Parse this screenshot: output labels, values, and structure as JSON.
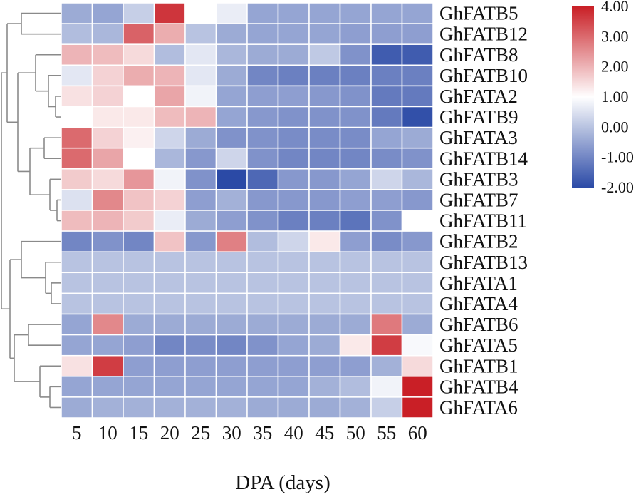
{
  "chart_data": {
    "type": "heatmap",
    "xlabel": "DPA (days)",
    "ylabel": "",
    "columns": [
      "5",
      "10",
      "15",
      "20",
      "25",
      "30",
      "35",
      "40",
      "45",
      "50",
      "55",
      "60"
    ],
    "rows": [
      "GhFATB5",
      "GhFATB12",
      "GhFATB8",
      "GhFATB10",
      "GhFATA2",
      "GhFATB9",
      "GhFATA3",
      "GhFATB14",
      "GhFATB3",
      "GhFATB7",
      "GhFATB11",
      "GhFATB2",
      "GhFATB13",
      "GhFATA1",
      "GhFATA4",
      "GhFATB6",
      "GhFATA5",
      "GhFATB1",
      "GhFATB4",
      "GhFATA6"
    ],
    "values": [
      [
        -0.4,
        -0.5,
        0.2,
        3.7,
        1.0,
        0.7,
        -0.5,
        -0.5,
        -0.5,
        -0.5,
        -0.5,
        -0.5
      ],
      [
        -0.1,
        -0.2,
        3.1,
        2.1,
        0.0,
        -0.4,
        -0.5,
        -0.5,
        -0.5,
        -0.6,
        -0.6,
        -0.6
      ],
      [
        2.0,
        1.9,
        1.5,
        -0.1,
        0.6,
        -0.2,
        -0.4,
        -0.4,
        0.1,
        -0.8,
        -1.7,
        -1.7
      ],
      [
        0.6,
        1.6,
        2.1,
        2.0,
        0.6,
        -0.4,
        -1.0,
        -1.1,
        -1.1,
        -1.1,
        -1.1,
        -1.1
      ],
      [
        1.4,
        1.6,
        1.0,
        2.2,
        0.8,
        -0.5,
        -0.6,
        -0.6,
        -0.7,
        -0.8,
        -1.2,
        -1.2
      ],
      [
        1.0,
        1.3,
        1.3,
        1.9,
        2.0,
        -0.5,
        -0.7,
        -0.8,
        -0.8,
        -0.8,
        -1.2,
        -1.9
      ],
      [
        3.0,
        1.6,
        1.2,
        0.3,
        -0.4,
        -0.8,
        -0.8,
        -0.9,
        -0.9,
        -0.9,
        -0.5,
        -0.4
      ],
      [
        3.0,
        2.2,
        1.0,
        -0.2,
        -0.7,
        0.3,
        -0.8,
        -1.0,
        -1.0,
        -1.0,
        -0.9,
        -0.8
      ],
      [
        1.7,
        1.5,
        2.4,
        0.8,
        -0.8,
        -2.0,
        -1.5,
        -0.7,
        -0.7,
        -0.5,
        0.3,
        -0.2
      ],
      [
        0.5,
        2.6,
        1.8,
        1.6,
        -0.6,
        -0.3,
        -0.7,
        -0.7,
        -0.7,
        -0.6,
        -0.6,
        -0.7
      ],
      [
        1.9,
        2.0,
        1.7,
        0.7,
        -0.4,
        -0.6,
        -0.8,
        -1.1,
        -1.1,
        -1.3,
        -0.8,
        1.0
      ],
      [
        -1.0,
        -0.8,
        -1.0,
        1.8,
        -0.7,
        2.7,
        -0.1,
        0.3,
        1.3,
        -0.6,
        -0.9,
        -0.7
      ],
      [
        0.0,
        0.0,
        0.0,
        0.0,
        0.0,
        0.0,
        0.0,
        0.0,
        0.0,
        0.0,
        0.0,
        0.0
      ],
      [
        0.0,
        0.0,
        0.0,
        0.0,
        0.0,
        0.0,
        0.0,
        0.0,
        0.0,
        0.0,
        0.0,
        0.0
      ],
      [
        0.0,
        0.0,
        0.0,
        0.0,
        0.0,
        0.0,
        0.0,
        0.0,
        0.0,
        0.0,
        0.0,
        0.0
      ],
      [
        -0.5,
        2.6,
        -0.4,
        -0.4,
        -0.4,
        -0.4,
        -0.4,
        -0.4,
        -0.4,
        -0.4,
        2.8,
        -0.4
      ],
      [
        -0.5,
        -0.5,
        -0.6,
        -1.0,
        -0.9,
        -1.0,
        -0.8,
        -0.5,
        -0.4,
        1.3,
        3.6,
        0.9
      ],
      [
        1.4,
        3.6,
        -0.6,
        -0.6,
        -0.6,
        -0.6,
        -0.6,
        -0.6,
        -0.6,
        -0.6,
        -0.3,
        1.5
      ],
      [
        -0.5,
        -0.5,
        -0.5,
        -0.5,
        -0.5,
        -0.5,
        -0.5,
        -0.5,
        -0.3,
        -0.1,
        0.8,
        4.0
      ],
      [
        -0.4,
        -0.3,
        -0.3,
        -0.3,
        -0.3,
        -0.3,
        -0.4,
        -0.4,
        -0.4,
        -0.3,
        0.2,
        4.0
      ]
    ],
    "colorbar": {
      "min": -2.0,
      "max": 4.0,
      "ticks": [
        "4.00",
        "3.00",
        "2.00",
        "1.00",
        "0.00",
        "-1.00",
        "-2.00"
      ],
      "colors": {
        "low": "#2b4aa6",
        "mid": "#ffffff",
        "high": "#c91f26"
      }
    },
    "dendrogram": true
  }
}
